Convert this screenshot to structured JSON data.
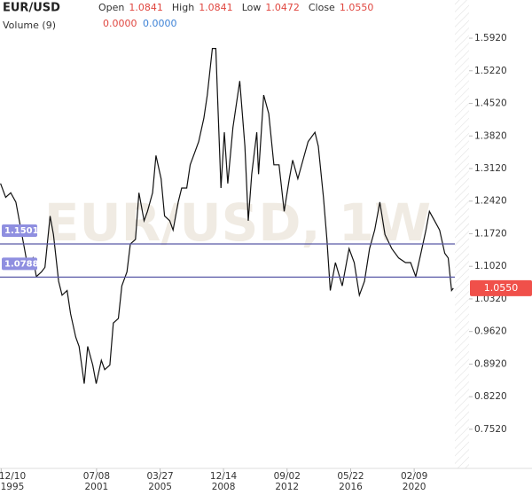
{
  "chart_data": {
    "type": "line",
    "title": "EUR/USD",
    "watermark": "EUR/USD, 1W",
    "ohlc": [
      {
        "name": "Open",
        "value": 1.0841
      },
      {
        "name": "High",
        "value": 1.0841
      },
      {
        "name": "Low",
        "value": 1.0472
      },
      {
        "name": "Close",
        "value": {
          "value": 1.055,
          "label": "1.0550"
        }
      }
    ],
    "volume": {
      "name": "Volume (9)",
      "values": [
        {
          "value": 0,
          "label": "0.0000"
        },
        {
          "value": 0,
          "label": "0.0000"
        }
      ]
    },
    "color": "#111111",
    "x": [
      1995.9,
      1996.2,
      1996.5,
      1996.8,
      1997.0,
      1997.3,
      1997.5,
      1997.8,
      1998.0,
      1998.3,
      1998.5,
      1998.8,
      1999.0,
      1999.3,
      1999.5,
      1999.8,
      2000.0,
      2000.3,
      2000.5,
      2000.8,
      2001.0,
      2001.3,
      2001.5,
      2001.8,
      2002.0,
      2002.3,
      2002.5,
      2002.8,
      2003.0,
      2003.3,
      2003.5,
      2003.8,
      2004.0,
      2004.3,
      2004.5,
      2004.8,
      2005.0,
      2005.3,
      2005.5,
      2005.8,
      2006.0,
      2006.3,
      2006.5,
      2006.8,
      2007.0,
      2007.3,
      2007.5,
      2007.8,
      2008.0,
      2008.3,
      2008.5,
      2008.6,
      2008.8,
      2009.0,
      2009.2,
      2009.5,
      2009.9,
      2010.2,
      2010.4,
      2010.6,
      2010.9,
      2011.0,
      2011.3,
      2011.6,
      2011.9,
      2012.2,
      2012.5,
      2012.8,
      2013.0,
      2013.3,
      2013.6,
      2013.9,
      2014.3,
      2014.5,
      2014.8,
      2015.0,
      2015.2,
      2015.5,
      2015.9,
      2016.3,
      2016.6,
      2016.9,
      2017.2,
      2017.5,
      2017.8,
      2018.1,
      2018.4,
      2018.8,
      2019.2,
      2019.6,
      2019.9,
      2020.2,
      2020.5,
      2020.8,
      2021.0,
      2021.3,
      2021.6,
      2021.9,
      2022.1,
      2022.3,
      2022.4
    ],
    "values": [
      1.28,
      1.25,
      1.26,
      1.24,
      1.2,
      1.14,
      1.1,
      1.12,
      1.08,
      1.09,
      1.1,
      1.21,
      1.17,
      1.07,
      1.04,
      1.05,
      1.0,
      0.95,
      0.93,
      0.85,
      0.93,
      0.89,
      0.85,
      0.9,
      0.88,
      0.89,
      0.98,
      0.99,
      1.06,
      1.09,
      1.15,
      1.16,
      1.26,
      1.2,
      1.22,
      1.26,
      1.34,
      1.29,
      1.21,
      1.2,
      1.18,
      1.24,
      1.27,
      1.27,
      1.32,
      1.35,
      1.37,
      1.42,
      1.47,
      1.57,
      1.57,
      1.47,
      1.27,
      1.39,
      1.28,
      1.4,
      1.5,
      1.36,
      1.2,
      1.3,
      1.39,
      1.3,
      1.47,
      1.43,
      1.32,
      1.32,
      1.22,
      1.29,
      1.33,
      1.29,
      1.33,
      1.37,
      1.39,
      1.36,
      1.25,
      1.16,
      1.05,
      1.11,
      1.06,
      1.14,
      1.11,
      1.04,
      1.07,
      1.14,
      1.18,
      1.24,
      1.17,
      1.14,
      1.12,
      1.11,
      1.11,
      1.08,
      1.13,
      1.18,
      1.22,
      1.2,
      1.18,
      1.13,
      1.12,
      1.05,
      1.055
    ],
    "last_price": {
      "value": 1.055,
      "label": "1.0550"
    },
    "hlines": [
      1.1501,
      1.0788
    ],
    "xlim": [
      1995.87,
      2022.49
    ],
    "ylim": [
      0.668,
      1.674
    ],
    "yticks": [
      {
        "value": 1.592,
        "label": "1.5920"
      },
      {
        "value": 1.522,
        "label": "1.5220"
      },
      {
        "value": 1.452,
        "label": "1.4520"
      },
      {
        "value": 1.382,
        "label": "1.3820"
      },
      {
        "value": 1.312,
        "label": "1.3120"
      },
      {
        "value": 1.242,
        "label": "1.2420"
      },
      {
        "value": 1.172,
        "label": "1.1720"
      },
      {
        "value": 1.102,
        "label": "1.1020"
      },
      {
        "value": 1.032,
        "label": "1.0320"
      },
      {
        "value": 0.962,
        "label": "0.9620"
      },
      {
        "value": 0.892,
        "label": "0.8920"
      },
      {
        "value": 0.822,
        "label": "0.8220"
      },
      {
        "value": 0.752,
        "label": "0.7520"
      }
    ],
    "xticks": [
      {
        "value": 1995.94,
        "label": "12/10 1995"
      },
      {
        "value": 2001.52,
        "label": "07/08 2001"
      },
      {
        "value": 2005.24,
        "label": "03/27 2005"
      },
      {
        "value": 2008.95,
        "label": "12/14 2008"
      },
      {
        "value": 2012.67,
        "label": "09/02 2012"
      },
      {
        "value": 2016.39,
        "label": "05/22 2016"
      },
      {
        "value": 2020.11,
        "label": "02/09 2020"
      }
    ]
  }
}
